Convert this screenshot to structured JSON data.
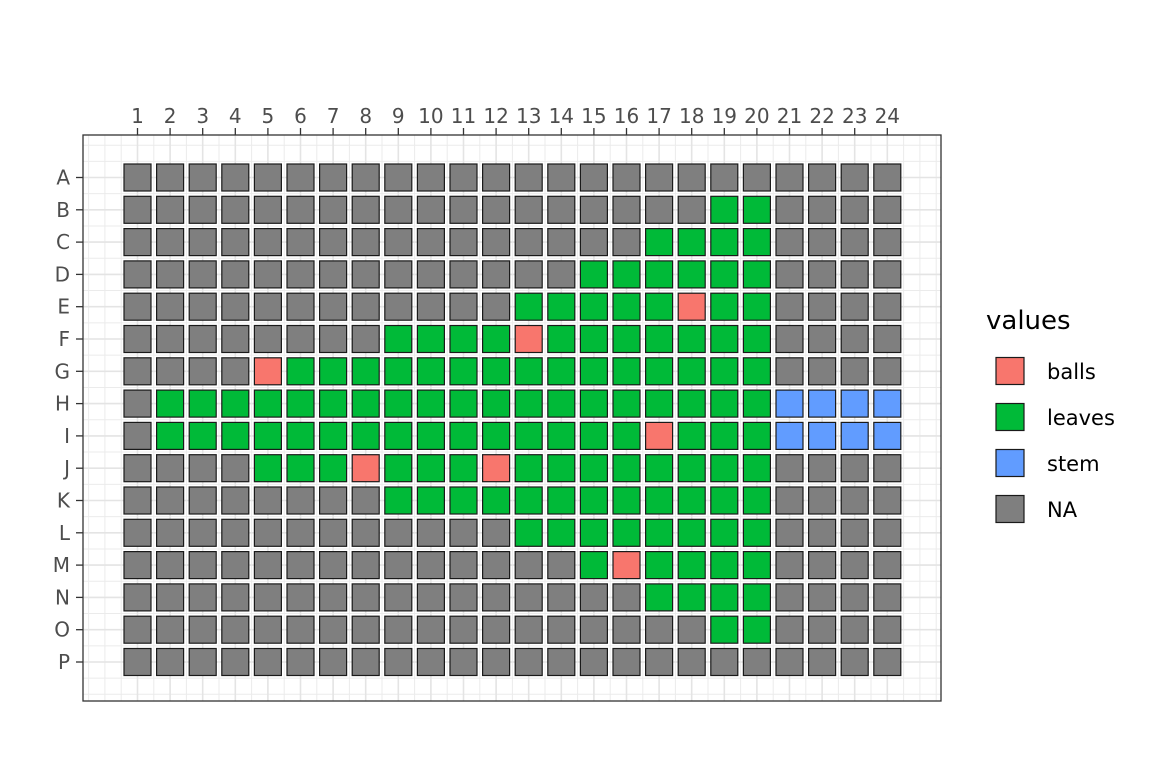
{
  "chart_data": {
    "type": "heatmap",
    "title": "",
    "xlabel": "",
    "ylabel": "",
    "columns": [
      "1",
      "2",
      "3",
      "4",
      "5",
      "6",
      "7",
      "8",
      "9",
      "10",
      "11",
      "12",
      "13",
      "14",
      "15",
      "16",
      "17",
      "18",
      "19",
      "20",
      "21",
      "22",
      "23",
      "24"
    ],
    "rows": [
      "A",
      "B",
      "C",
      "D",
      "E",
      "F",
      "G",
      "H",
      "I",
      "J",
      "K",
      "L",
      "M",
      "N",
      "O",
      "P"
    ],
    "grid": true,
    "legend": {
      "title": "values",
      "position": "right",
      "entries": [
        {
          "key": "balls",
          "label": "balls",
          "color": "#F8766D"
        },
        {
          "key": "leaves",
          "label": "leaves",
          "color": "#00BA38"
        },
        {
          "key": "stem",
          "label": "stem",
          "color": "#619CFF"
        },
        {
          "key": "NA",
          "label": "NA",
          "color": "#7F7F7F"
        }
      ]
    },
    "cells": {
      "A": [],
      "B": [
        {
          "col": 19,
          "value": "leaves"
        },
        {
          "col": 20,
          "value": "leaves"
        }
      ],
      "C": [
        {
          "col": 17,
          "value": "leaves"
        },
        {
          "col": 18,
          "value": "leaves"
        },
        {
          "col": 19,
          "value": "leaves"
        },
        {
          "col": 20,
          "value": "leaves"
        }
      ],
      "D": [
        {
          "col": 15,
          "value": "leaves"
        },
        {
          "col": 16,
          "value": "leaves"
        },
        {
          "col": 17,
          "value": "leaves"
        },
        {
          "col": 18,
          "value": "leaves"
        },
        {
          "col": 19,
          "value": "leaves"
        },
        {
          "col": 20,
          "value": "leaves"
        }
      ],
      "E": [
        {
          "col": 13,
          "value": "leaves"
        },
        {
          "col": 14,
          "value": "leaves"
        },
        {
          "col": 15,
          "value": "leaves"
        },
        {
          "col": 16,
          "value": "leaves"
        },
        {
          "col": 17,
          "value": "leaves"
        },
        {
          "col": 18,
          "value": "balls"
        },
        {
          "col": 19,
          "value": "leaves"
        },
        {
          "col": 20,
          "value": "leaves"
        }
      ],
      "F": [
        {
          "col": 9,
          "value": "leaves"
        },
        {
          "col": 10,
          "value": "leaves"
        },
        {
          "col": 11,
          "value": "leaves"
        },
        {
          "col": 12,
          "value": "leaves"
        },
        {
          "col": 13,
          "value": "balls"
        },
        {
          "col": 14,
          "value": "leaves"
        },
        {
          "col": 15,
          "value": "leaves"
        },
        {
          "col": 16,
          "value": "leaves"
        },
        {
          "col": 17,
          "value": "leaves"
        },
        {
          "col": 18,
          "value": "leaves"
        },
        {
          "col": 19,
          "value": "leaves"
        },
        {
          "col": 20,
          "value": "leaves"
        }
      ],
      "G": [
        {
          "col": 5,
          "value": "balls"
        },
        {
          "col": 6,
          "value": "leaves"
        },
        {
          "col": 7,
          "value": "leaves"
        },
        {
          "col": 8,
          "value": "leaves"
        },
        {
          "col": 9,
          "value": "leaves"
        },
        {
          "col": 10,
          "value": "leaves"
        },
        {
          "col": 11,
          "value": "leaves"
        },
        {
          "col": 12,
          "value": "leaves"
        },
        {
          "col": 13,
          "value": "leaves"
        },
        {
          "col": 14,
          "value": "leaves"
        },
        {
          "col": 15,
          "value": "leaves"
        },
        {
          "col": 16,
          "value": "leaves"
        },
        {
          "col": 17,
          "value": "leaves"
        },
        {
          "col": 18,
          "value": "leaves"
        },
        {
          "col": 19,
          "value": "leaves"
        },
        {
          "col": 20,
          "value": "leaves"
        }
      ],
      "H": [
        {
          "col": 2,
          "value": "leaves"
        },
        {
          "col": 3,
          "value": "leaves"
        },
        {
          "col": 4,
          "value": "leaves"
        },
        {
          "col": 5,
          "value": "leaves"
        },
        {
          "col": 6,
          "value": "leaves"
        },
        {
          "col": 7,
          "value": "leaves"
        },
        {
          "col": 8,
          "value": "leaves"
        },
        {
          "col": 9,
          "value": "leaves"
        },
        {
          "col": 10,
          "value": "leaves"
        },
        {
          "col": 11,
          "value": "leaves"
        },
        {
          "col": 12,
          "value": "leaves"
        },
        {
          "col": 13,
          "value": "leaves"
        },
        {
          "col": 14,
          "value": "leaves"
        },
        {
          "col": 15,
          "value": "leaves"
        },
        {
          "col": 16,
          "value": "leaves"
        },
        {
          "col": 17,
          "value": "leaves"
        },
        {
          "col": 18,
          "value": "leaves"
        },
        {
          "col": 19,
          "value": "leaves"
        },
        {
          "col": 20,
          "value": "leaves"
        },
        {
          "col": 21,
          "value": "stem"
        },
        {
          "col": 22,
          "value": "stem"
        },
        {
          "col": 23,
          "value": "stem"
        },
        {
          "col": 24,
          "value": "stem"
        }
      ],
      "I": [
        {
          "col": 2,
          "value": "leaves"
        },
        {
          "col": 3,
          "value": "leaves"
        },
        {
          "col": 4,
          "value": "leaves"
        },
        {
          "col": 5,
          "value": "leaves"
        },
        {
          "col": 6,
          "value": "leaves"
        },
        {
          "col": 7,
          "value": "leaves"
        },
        {
          "col": 8,
          "value": "leaves"
        },
        {
          "col": 9,
          "value": "leaves"
        },
        {
          "col": 10,
          "value": "leaves"
        },
        {
          "col": 11,
          "value": "leaves"
        },
        {
          "col": 12,
          "value": "leaves"
        },
        {
          "col": 13,
          "value": "leaves"
        },
        {
          "col": 14,
          "value": "leaves"
        },
        {
          "col": 15,
          "value": "leaves"
        },
        {
          "col": 16,
          "value": "leaves"
        },
        {
          "col": 17,
          "value": "balls"
        },
        {
          "col": 18,
          "value": "leaves"
        },
        {
          "col": 19,
          "value": "leaves"
        },
        {
          "col": 20,
          "value": "leaves"
        },
        {
          "col": 21,
          "value": "stem"
        },
        {
          "col": 22,
          "value": "stem"
        },
        {
          "col": 23,
          "value": "stem"
        },
        {
          "col": 24,
          "value": "stem"
        }
      ],
      "J": [
        {
          "col": 5,
          "value": "leaves"
        },
        {
          "col": 6,
          "value": "leaves"
        },
        {
          "col": 7,
          "value": "leaves"
        },
        {
          "col": 8,
          "value": "balls"
        },
        {
          "col": 9,
          "value": "leaves"
        },
        {
          "col": 10,
          "value": "leaves"
        },
        {
          "col": 11,
          "value": "leaves"
        },
        {
          "col": 12,
          "value": "balls"
        },
        {
          "col": 13,
          "value": "leaves"
        },
        {
          "col": 14,
          "value": "leaves"
        },
        {
          "col": 15,
          "value": "leaves"
        },
        {
          "col": 16,
          "value": "leaves"
        },
        {
          "col": 17,
          "value": "leaves"
        },
        {
          "col": 18,
          "value": "leaves"
        },
        {
          "col": 19,
          "value": "leaves"
        },
        {
          "col": 20,
          "value": "leaves"
        }
      ],
      "K": [
        {
          "col": 9,
          "value": "leaves"
        },
        {
          "col": 10,
          "value": "leaves"
        },
        {
          "col": 11,
          "value": "leaves"
        },
        {
          "col": 12,
          "value": "leaves"
        },
        {
          "col": 13,
          "value": "leaves"
        },
        {
          "col": 14,
          "value": "leaves"
        },
        {
          "col": 15,
          "value": "leaves"
        },
        {
          "col": 16,
          "value": "leaves"
        },
        {
          "col": 17,
          "value": "leaves"
        },
        {
          "col": 18,
          "value": "leaves"
        },
        {
          "col": 19,
          "value": "leaves"
        },
        {
          "col": 20,
          "value": "leaves"
        }
      ],
      "L": [
        {
          "col": 13,
          "value": "leaves"
        },
        {
          "col": 14,
          "value": "leaves"
        },
        {
          "col": 15,
          "value": "leaves"
        },
        {
          "col": 16,
          "value": "leaves"
        },
        {
          "col": 17,
          "value": "leaves"
        },
        {
          "col": 18,
          "value": "leaves"
        },
        {
          "col": 19,
          "value": "leaves"
        },
        {
          "col": 20,
          "value": "leaves"
        }
      ],
      "M": [
        {
          "col": 15,
          "value": "leaves"
        },
        {
          "col": 16,
          "value": "balls"
        },
        {
          "col": 17,
          "value": "leaves"
        },
        {
          "col": 18,
          "value": "leaves"
        },
        {
          "col": 19,
          "value": "leaves"
        },
        {
          "col": 20,
          "value": "leaves"
        }
      ],
      "N": [
        {
          "col": 17,
          "value": "leaves"
        },
        {
          "col": 18,
          "value": "leaves"
        },
        {
          "col": 19,
          "value": "leaves"
        },
        {
          "col": 20,
          "value": "leaves"
        }
      ],
      "O": [
        {
          "col": 19,
          "value": "leaves"
        },
        {
          "col": 20,
          "value": "leaves"
        }
      ],
      "P": []
    },
    "default_value": "NA"
  }
}
